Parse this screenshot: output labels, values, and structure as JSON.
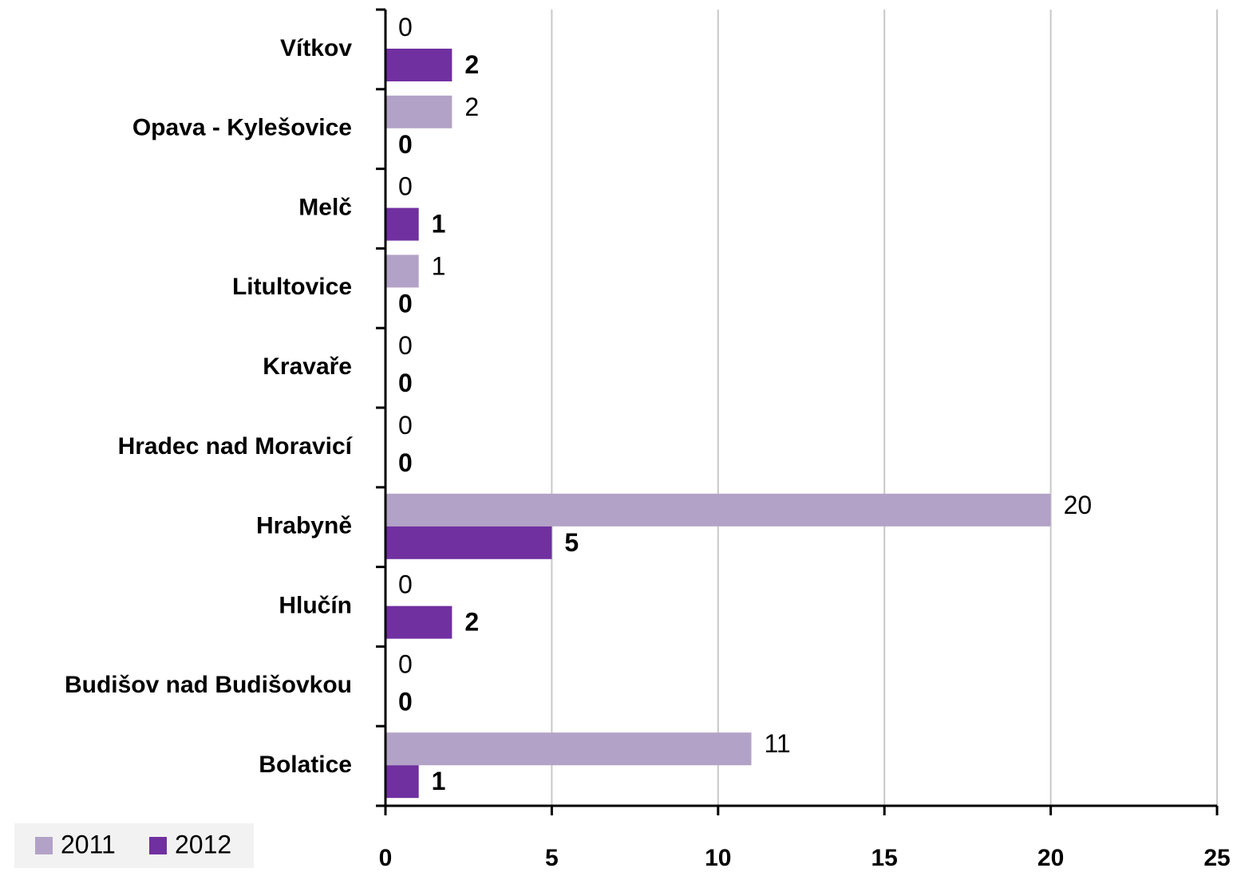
{
  "chart_data": {
    "type": "hbar",
    "categories": [
      "Vítkov",
      "Opava - Kylešovice",
      "Melč",
      "Litultovice",
      "Kravaře",
      "Hradec nad Moravicí",
      "Hrabyně",
      "Hlučín",
      "Budišov nad Budišovkou",
      "Bolatice"
    ],
    "series": [
      {
        "name": "2011",
        "color": "#b3a2c7",
        "values": [
          0,
          2,
          0,
          1,
          0,
          0,
          20,
          0,
          0,
          11
        ]
      },
      {
        "name": "2012",
        "color": "#7030a0",
        "values": [
          2,
          0,
          1,
          0,
          0,
          0,
          5,
          2,
          0,
          1
        ]
      }
    ],
    "xlim": [
      0,
      25
    ],
    "xticks": [
      0,
      5,
      10,
      15,
      20,
      25
    ],
    "grid": true,
    "legend": "bottom-left"
  }
}
